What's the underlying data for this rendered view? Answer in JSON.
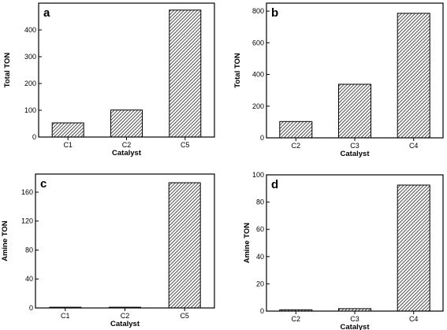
{
  "chart_data": [
    {
      "type": "bar",
      "panel_label": "a",
      "categories": [
        "C1",
        "C2",
        "C5"
      ],
      "values": [
        53,
        101,
        474
      ],
      "xlabel": "Catalyst",
      "ylabel": "Total TON",
      "ylim": [
        0,
        500
      ],
      "yticks": [
        0,
        100,
        200,
        300,
        400
      ],
      "grid": false,
      "bar_fill": "diagonal hatch"
    },
    {
      "type": "bar",
      "panel_label": "b",
      "categories": [
        "C2",
        "C3",
        "C4"
      ],
      "values": [
        103,
        338,
        786
      ],
      "xlabel": "Catalyst",
      "ylabel": "Total TON",
      "ylim": [
        0,
        850
      ],
      "yticks": [
        0,
        200,
        400,
        600,
        800
      ],
      "grid": false,
      "bar_fill": "diagonal hatch"
    },
    {
      "type": "bar",
      "panel_label": "c",
      "categories": [
        "C1",
        "C2",
        "C5"
      ],
      "values": [
        1,
        1,
        173
      ],
      "xlabel": "Catalyst",
      "ylabel": "Amine TON",
      "ylim": [
        0,
        185
      ],
      "yticks": [
        0,
        40,
        80,
        120,
        160
      ],
      "grid": false,
      "bar_fill": "diagonal hatch"
    },
    {
      "type": "bar",
      "panel_label": "d",
      "categories": [
        "C2",
        "C3",
        "C4"
      ],
      "values": [
        1,
        1.8,
        92.5
      ],
      "xlabel": "Catalyst",
      "ylabel": "Amine TON",
      "ylim": [
        0,
        100
      ],
      "yticks": [
        0,
        20,
        40,
        60,
        80,
        100
      ],
      "grid": false,
      "bar_fill": "diagonal hatch"
    }
  ],
  "colors": {
    "axis": "#000000",
    "bar_outline": "#000000",
    "hatch": "#222222",
    "background": "#ffffff"
  }
}
